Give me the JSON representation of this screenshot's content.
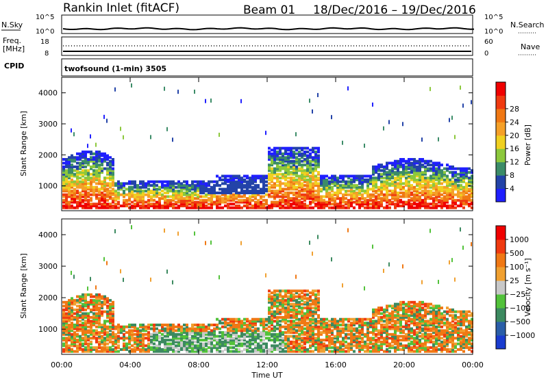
{
  "header": {
    "title": "Rankin Inlet (fitACF)",
    "beam": "Beam 01",
    "dates": "18/Dec/2016 – 19/Dec/2016"
  },
  "noise_panel": {
    "left_label": "N.Sky",
    "right_label": "N.Search",
    "left_ticks": [
      "10^5",
      "10^0"
    ],
    "right_ticks": [
      "10^5",
      "10^0"
    ]
  },
  "freq_panel": {
    "left_label_1": "Freq.",
    "left_label_2": "[MHz]",
    "right_label": "Nave",
    "left_ticks": [
      "18",
      "8"
    ],
    "right_ticks": [
      "60",
      "0"
    ]
  },
  "cpid_panel": {
    "label": "CPID",
    "text": "twofsound (1-min) 3505"
  },
  "chart_data": [
    {
      "type": "heatmap",
      "name": "power",
      "ylabel": "Slant Range [km]",
      "yticks": [
        "1000",
        "2000",
        "3000",
        "4000"
      ],
      "ylim": [
        200,
        4500
      ],
      "xticks": [
        "00:00",
        "04:00",
        "08:00",
        "12:00",
        "16:00",
        "20:00",
        "00:00"
      ],
      "xlim_hours": [
        0,
        24
      ],
      "colorbar": {
        "label": "Power [dB]",
        "ticks": [
          "4",
          "8",
          "12",
          "16",
          "20",
          "24",
          "28"
        ],
        "colors": [
          "#1f1fff",
          "#2343a8",
          "#3c8c68",
          "#8cc83c",
          "#f0d020",
          "#f5a028",
          "#f07814",
          "#f03a10",
          "#f00000"
        ]
      }
    },
    {
      "type": "heatmap",
      "name": "velocity",
      "ylabel": "Slant Range [km]",
      "yticks": [
        "1000",
        "2000",
        "3000",
        "4000"
      ],
      "ylim": [
        200,
        4500
      ],
      "xticks": [
        "00:00",
        "04:00",
        "08:00",
        "12:00",
        "16:00",
        "20:00",
        "00:00"
      ],
      "xlabel": "Time UT",
      "xlim_hours": [
        0,
        24
      ],
      "colorbar": {
        "label": "Velocity [m s⁻¹]",
        "ticks": [
          "1000",
          "500",
          "100",
          "25",
          "−25",
          "−100",
          "−500",
          "−1000"
        ],
        "colors": [
          "#1a3ccf",
          "#2a5ea8",
          "#3c8a60",
          "#52c23a",
          "#c8c8c8",
          "#f0a030",
          "#f07814",
          "#f03a10",
          "#f00000"
        ]
      }
    }
  ]
}
